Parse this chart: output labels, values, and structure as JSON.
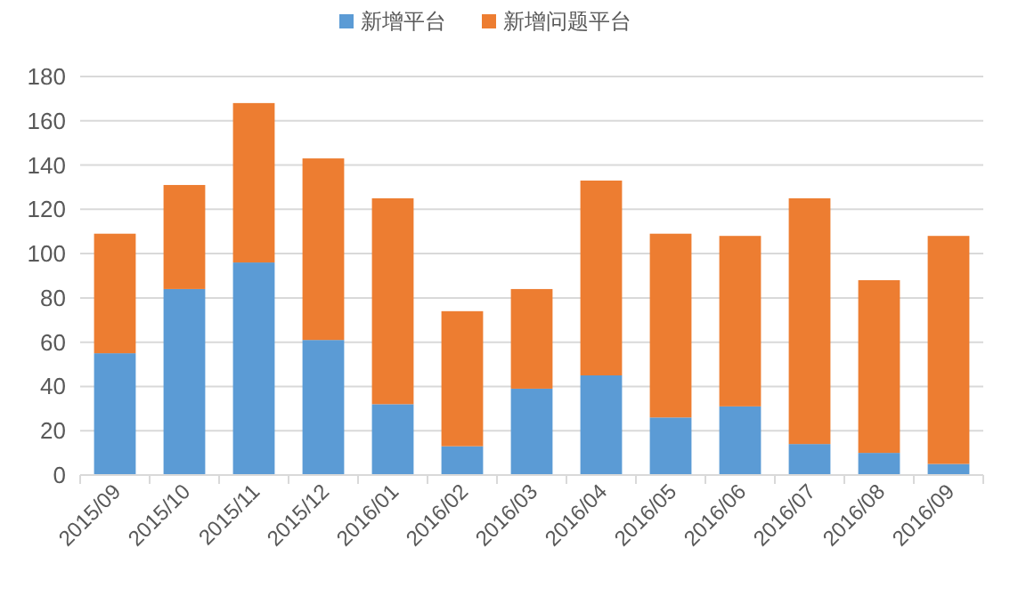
{
  "chart_data": {
    "type": "bar",
    "stacked": true,
    "categories": [
      "2015/09",
      "2015/10",
      "2015/11",
      "2015/12",
      "2016/01",
      "2016/02",
      "2016/03",
      "2016/04",
      "2016/05",
      "2016/06",
      "2016/07",
      "2016/08",
      "2016/09"
    ],
    "series": [
      {
        "name": "新增平台",
        "color": "#5b9bd5",
        "values": [
          55,
          84,
          96,
          61,
          32,
          13,
          39,
          45,
          26,
          31,
          14,
          10,
          5
        ]
      },
      {
        "name": "新增问题平台",
        "color": "#ed7d31",
        "values": [
          54,
          47,
          72,
          82,
          93,
          61,
          45,
          88,
          83,
          77,
          111,
          78,
          103
        ]
      }
    ],
    "ylim": [
      0,
      180
    ],
    "yticks": [
      0,
      20,
      40,
      60,
      80,
      100,
      120,
      140,
      160,
      180
    ],
    "grid": "y",
    "legend": "top"
  }
}
